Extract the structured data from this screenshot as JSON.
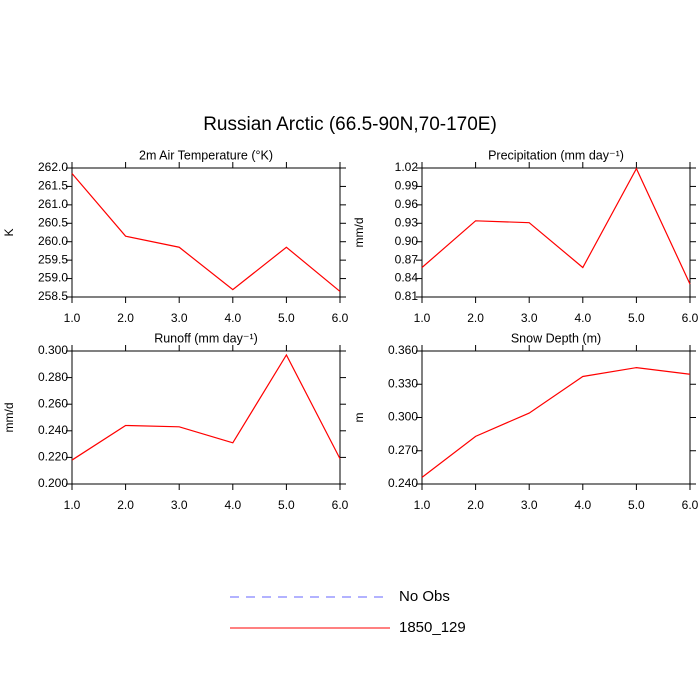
{
  "title": "Russian Arctic (66.5-90N,70-170E)",
  "legend": [
    {
      "name": "No Obs",
      "color": "#6666ff",
      "dashed": true
    },
    {
      "name": "1850_129",
      "color": "#ff0000",
      "dashed": false
    }
  ],
  "chart_data": [
    {
      "type": "line",
      "title": "2m Air Temperature (°K)",
      "ylabel": "K",
      "x": [
        1,
        2,
        3,
        4,
        5,
        6
      ],
      "xlim": [
        1,
        6
      ],
      "xticks": [
        {
          "value": 1,
          "label": "1.0"
        },
        {
          "value": 2,
          "label": "2.0"
        },
        {
          "value": 3,
          "label": "3.0"
        },
        {
          "value": 4,
          "label": "4.0"
        },
        {
          "value": 5,
          "label": "5.0"
        },
        {
          "value": 6,
          "label": "6.0"
        }
      ],
      "ylim": [
        258.5,
        262
      ],
      "yticks": [
        258.5,
        {
          "value": 259,
          "label": "259.0"
        },
        259.5,
        {
          "value": 260,
          "label": "260.0"
        },
        260.5,
        {
          "value": 261,
          "label": "261.0"
        },
        261.5,
        {
          "value": 262,
          "label": "262.0"
        }
      ],
      "values": [
        261.85,
        260.15,
        259.85,
        258.7,
        259.85,
        258.65
      ],
      "color": "#ff0000"
    },
    {
      "type": "line",
      "title": "Precipitation (mm day⁻¹)",
      "ylabel": "mm/d",
      "x": [
        1,
        2,
        3,
        4,
        5,
        6
      ],
      "xlim": [
        1,
        6
      ],
      "xticks": [
        {
          "value": 1,
          "label": "1.0"
        },
        {
          "value": 2,
          "label": "2.0"
        },
        {
          "value": 3,
          "label": "3.0"
        },
        {
          "value": 4,
          "label": "4.0"
        },
        {
          "value": 5,
          "label": "5.0"
        },
        {
          "value": 6,
          "label": "6.0"
        }
      ],
      "ylim": [
        0.81,
        1.02
      ],
      "yticks": [
        0.81,
        0.84,
        0.87,
        {
          "value": 0.9,
          "label": "0.90"
        },
        0.93,
        0.96,
        0.99,
        1.02
      ],
      "values": [
        0.858,
        0.934,
        0.931,
        0.858,
        1.019,
        0.831
      ],
      "color": "#ff0000"
    },
    {
      "type": "line",
      "title": "Runoff (mm day⁻¹)",
      "ylabel": "mm/d",
      "x": [
        1,
        2,
        3,
        4,
        5,
        6
      ],
      "xlim": [
        1,
        6
      ],
      "xticks": [
        {
          "value": 1,
          "label": "1.0"
        },
        {
          "value": 2,
          "label": "2.0"
        },
        {
          "value": 3,
          "label": "3.0"
        },
        {
          "value": 4,
          "label": "4.0"
        },
        {
          "value": 5,
          "label": "5.0"
        },
        {
          "value": 6,
          "label": "6.0"
        }
      ],
      "ylim": [
        0.2,
        0.3
      ],
      "yticks": [
        {
          "value": 0.2,
          "label": "0.200"
        },
        {
          "value": 0.22,
          "label": "0.220"
        },
        {
          "value": 0.24,
          "label": "0.240"
        },
        {
          "value": 0.26,
          "label": "0.260"
        },
        {
          "value": 0.28,
          "label": "0.280"
        },
        {
          "value": 0.3,
          "label": "0.300"
        }
      ],
      "values": [
        0.218,
        0.244,
        0.243,
        0.231,
        0.297,
        0.219
      ],
      "color": "#ff0000"
    },
    {
      "type": "line",
      "title": "Snow Depth (m)",
      "ylabel": "m",
      "x": [
        1,
        2,
        3,
        4,
        5,
        6
      ],
      "xlim": [
        1,
        6
      ],
      "xticks": [
        {
          "value": 1,
          "label": "1.0"
        },
        {
          "value": 2,
          "label": "2.0"
        },
        {
          "value": 3,
          "label": "3.0"
        },
        {
          "value": 4,
          "label": "4.0"
        },
        {
          "value": 5,
          "label": "5.0"
        },
        {
          "value": 6,
          "label": "6.0"
        }
      ],
      "ylim": [
        0.24,
        0.36
      ],
      "yticks": [
        {
          "value": 0.24,
          "label": "0.240"
        },
        {
          "value": 0.27,
          "label": "0.270"
        },
        {
          "value": 0.3,
          "label": "0.300"
        },
        {
          "value": 0.33,
          "label": "0.330"
        },
        {
          "value": 0.36,
          "label": "0.360"
        }
      ],
      "values": [
        0.246,
        0.283,
        0.304,
        0.337,
        0.345,
        0.339
      ],
      "color": "#ff0000"
    }
  ]
}
